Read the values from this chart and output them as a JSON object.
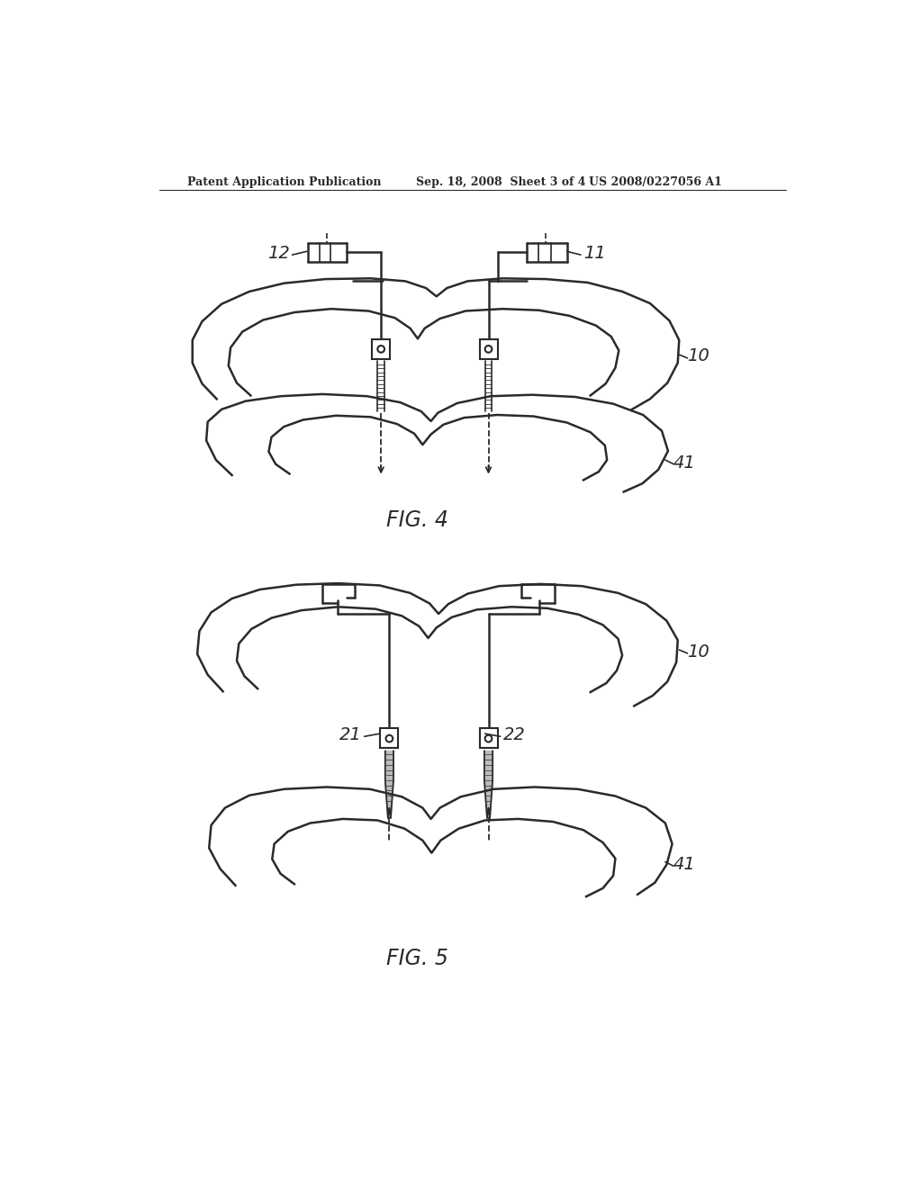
{
  "bg_color": "#ffffff",
  "line_color": "#2a2a2a",
  "header_text_left": "Patent Application Publication",
  "header_text_mid": "Sep. 18, 2008  Sheet 3 of 4",
  "header_text_right": "US 2008/0227056 A1",
  "fig4_label": "FIG. 4",
  "fig5_label": "FIG. 5",
  "label_12": "12",
  "label_11": "11",
  "label_10_fig4": "10",
  "label_41_fig4": "41",
  "label_21": "21",
  "label_22": "22",
  "label_10_fig5": "10",
  "label_41_fig5": "41"
}
